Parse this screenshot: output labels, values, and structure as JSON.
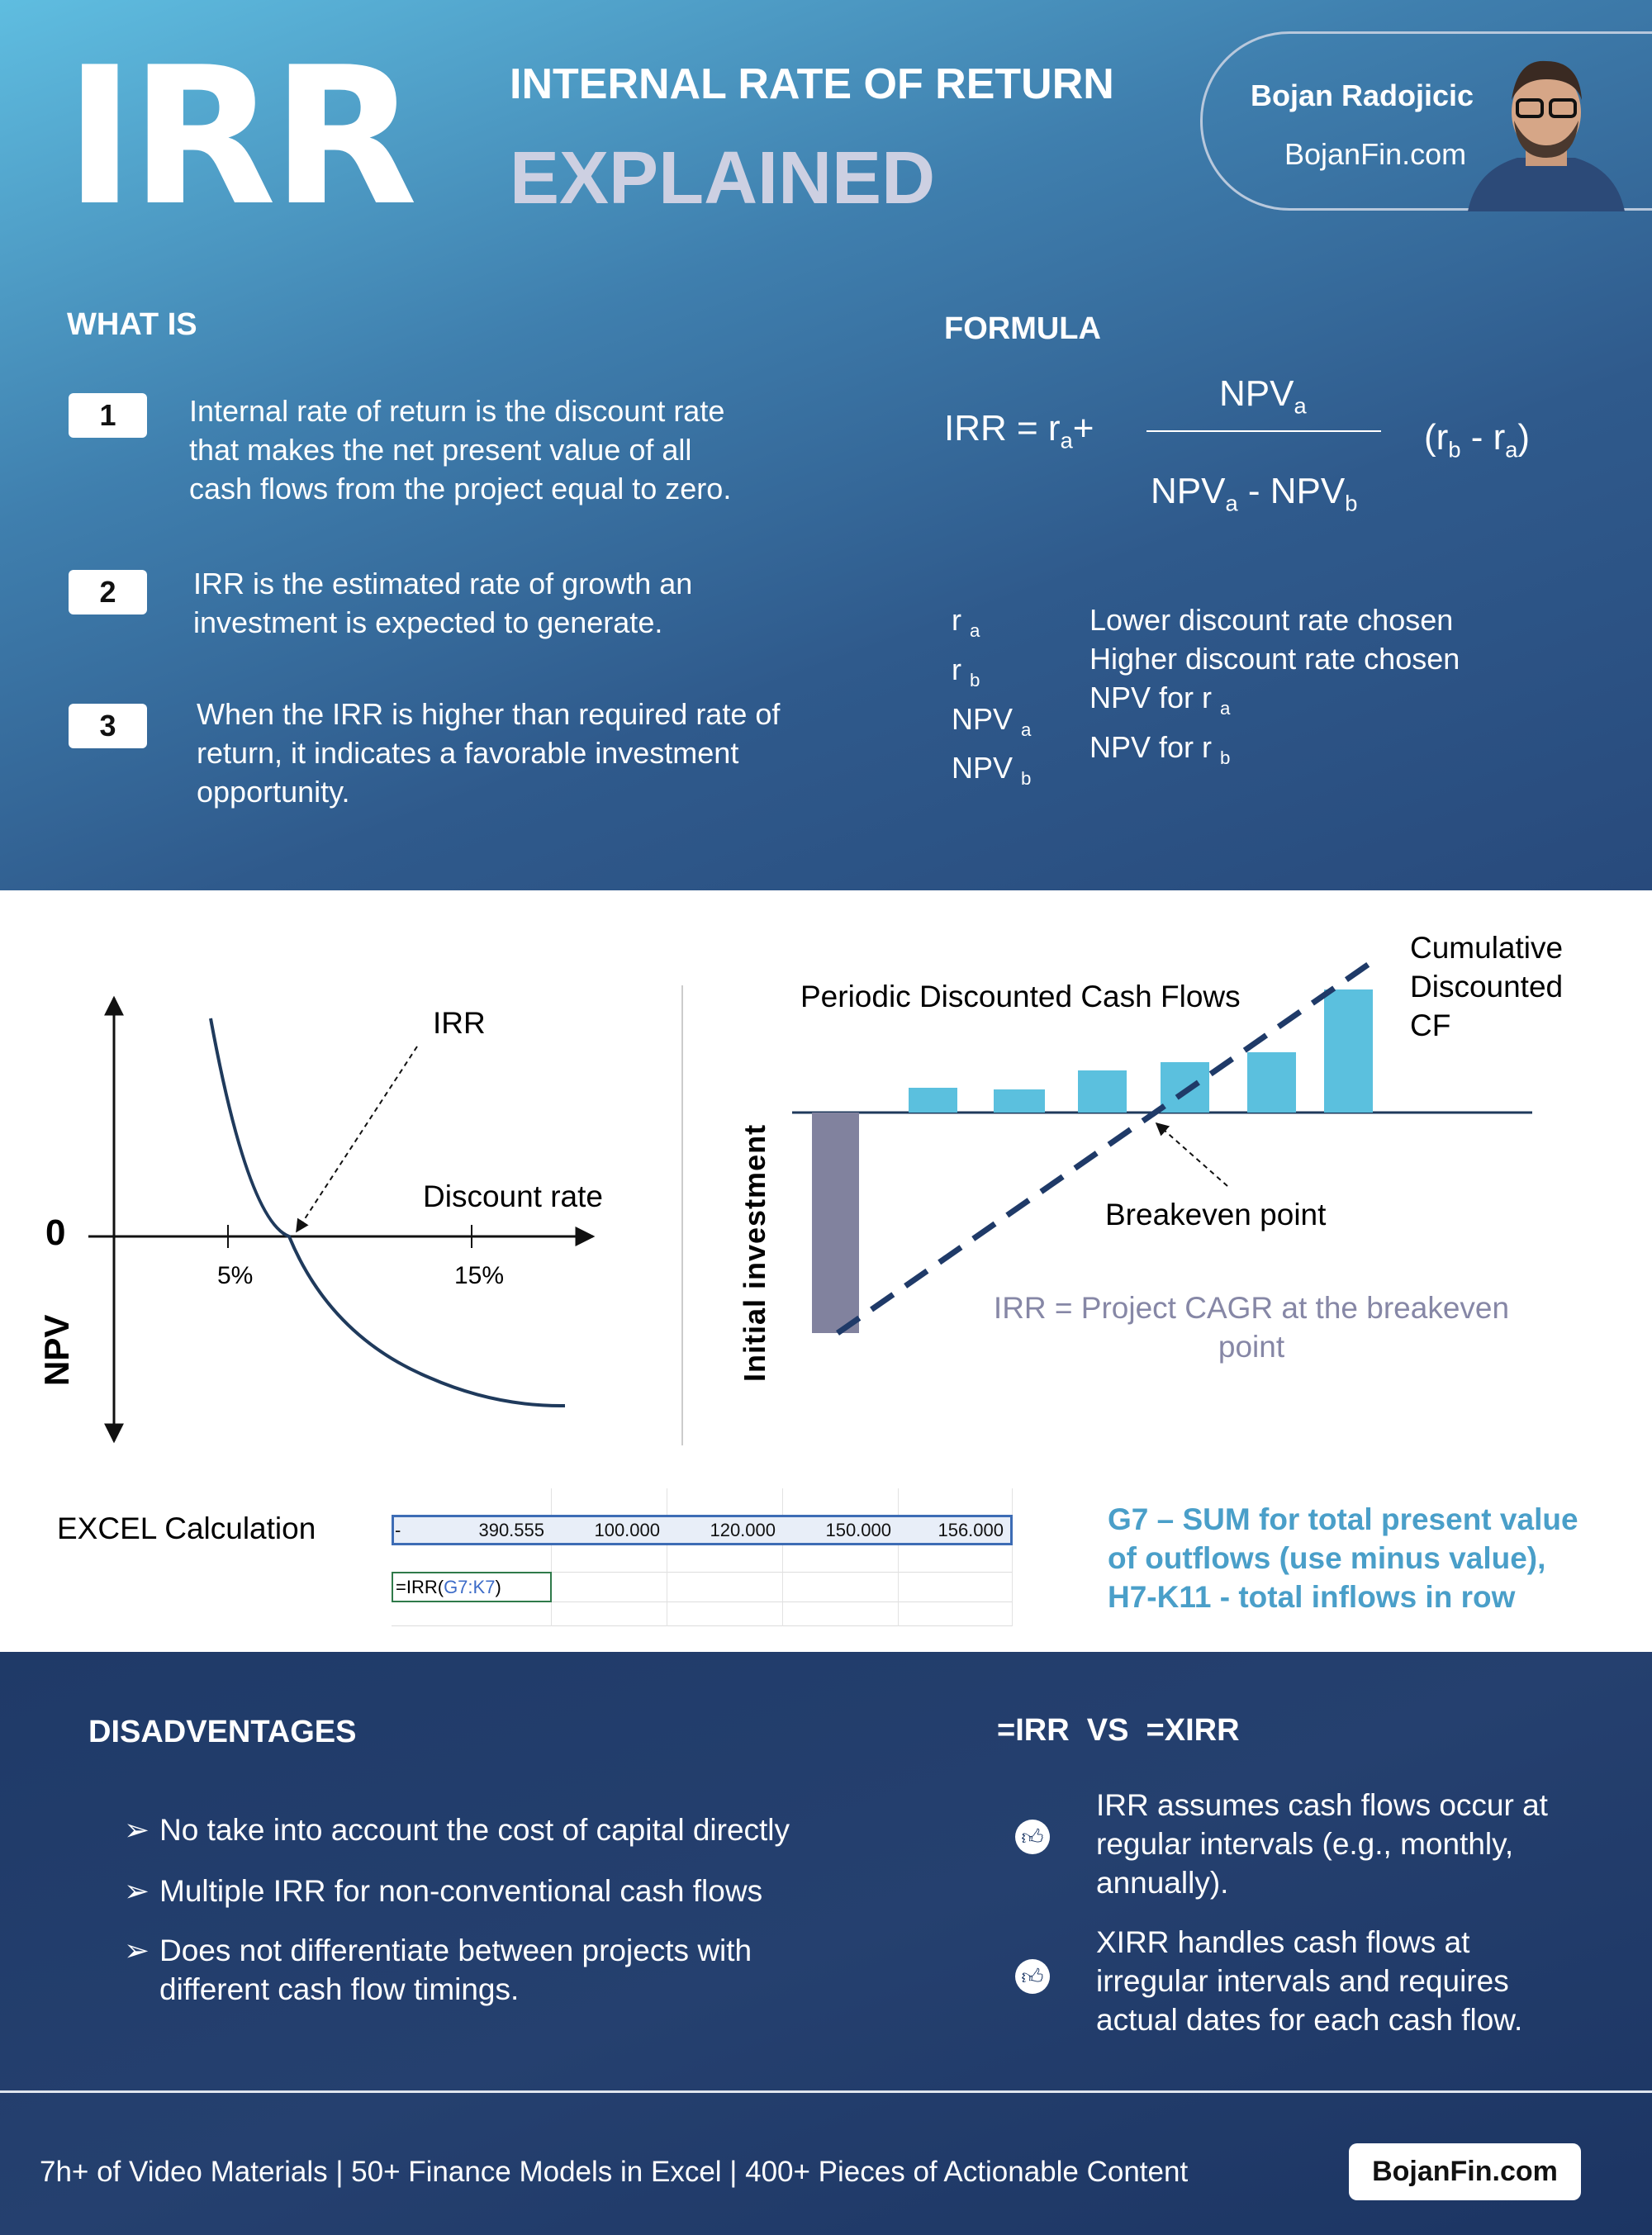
{
  "header": {
    "logo": "IRR",
    "title": "INTERNAL RATE OF RETURN",
    "subtitle": "EXPLAINED",
    "author_name": "Bojan Radojicic",
    "author_site": "BojanFin.com"
  },
  "what_is": {
    "heading": "WHAT IS",
    "items": [
      {
        "num": "1",
        "lines": [
          "Internal rate of return is the discount rate",
          "that makes the net present value of all",
          "cash flows from the project equal to zero."
        ]
      },
      {
        "num": "2",
        "lines": [
          "IRR is the estimated rate of growth an",
          "investment is expected to generate."
        ]
      },
      {
        "num": "3",
        "lines": [
          "When the IRR is higher than required rate of",
          "return, it indicates a favorable investment",
          "opportunity."
        ]
      }
    ]
  },
  "formula": {
    "heading": "FORMULA",
    "lhs": "IRR = r",
    "lhs_sub": "a",
    "plus": "+",
    "num": "NPV",
    "num_sub": "a",
    "den_a": "NPV",
    "den_a_sub": "a",
    "den_minus": " - NPV",
    "den_b_sub": "b",
    "paren_open": "(r",
    "paren_b": "b",
    "paren_mid": " - r",
    "paren_a": "a",
    "paren_close": ")",
    "defs": [
      {
        "sym": "r",
        "sub": "a",
        "desc": "Lower discount rate chosen"
      },
      {
        "sym": "r",
        "sub": "b",
        "desc": "Higher discount rate chosen"
      },
      {
        "sym": "NPV",
        "sub": "a",
        "desc": "NPV for r",
        "desc_sub": "a"
      },
      {
        "sym": "NPV",
        "sub": "b",
        "desc": "NPV for r",
        "desc_sub": "b"
      }
    ]
  },
  "npv_chart": {
    "y_label": "NPV",
    "zero": "0",
    "x_label": "Discount rate",
    "ticks": [
      "5%",
      "15%"
    ],
    "irr_label": "IRR",
    "curve_color": "#1f3a5c"
  },
  "cf_chart": {
    "title": "Periodic Discounted Cash Flows",
    "cumulative_lines": [
      "Cumulative",
      "Discounted",
      "CF"
    ],
    "y_label": "Initial investment",
    "breakeven": "Breakeven point",
    "note_lines": [
      "IRR = Project CAGR at the breakeven",
      "point"
    ],
    "bar_color": "#5bc0de",
    "neg_bar_color": "#81829e",
    "line_color": "#1f3a68"
  },
  "excel": {
    "label": "EXCEL Calculation",
    "row": [
      "-",
      "390.555",
      "100.000",
      "120.000",
      "150.000",
      "156.000"
    ],
    "formula_prefix": "=IRR(",
    "formula_range": "G7:K7",
    "formula_suffix": ")",
    "note_lines": [
      "G7 – SUM for total present value",
      "of outflows (use minus value),",
      "H7-K11 -  total inflows in row"
    ]
  },
  "disadvantages": {
    "heading": "DISADVENTAGES",
    "items": [
      {
        "lines": [
          "No take into account the cost of capital directly"
        ]
      },
      {
        "lines": [
          "Multiple IRR for non-conventional cash flows"
        ]
      },
      {
        "lines": [
          "Does not differentiate between projects with",
          "different cash flow timings."
        ]
      }
    ]
  },
  "irr_vs_xirr": {
    "heading": "=IRR  VS  =XIRR",
    "items": [
      {
        "icon": "thumbs-up-icon",
        "lines": [
          "IRR assumes cash flows occur at",
          "regular intervals (e.g., monthly,",
          "annually)."
        ]
      },
      {
        "icon": "thumbs-up-icon",
        "lines": [
          "XIRR handles cash flows at",
          "irregular intervals and requires",
          "actual dates for each cash flow."
        ]
      }
    ]
  },
  "footer": {
    "text": "7h+ of Video Materials | 50+ Finance Models in Excel | 400+ Pieces of Actionable Content",
    "button": "BojanFin.com"
  }
}
